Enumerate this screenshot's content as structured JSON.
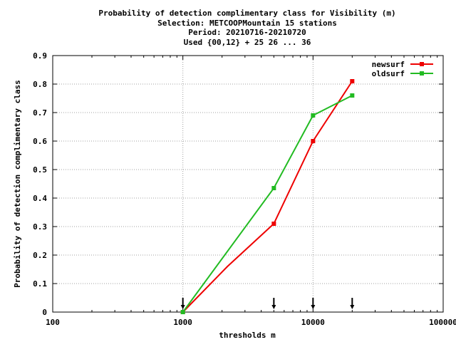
{
  "chart_data": {
    "type": "line",
    "title_lines": [
      "Probability of detection complimentary class  for Visibility (m)",
      "Selection: METCOOPMountain     15 stations",
      "Period: 20210716-20210720",
      "Used {00,12} + 25 26 ... 36"
    ],
    "xlabel": "thresholds m",
    "ylabel": "Probability of detection complimentary class",
    "x_scale": "log",
    "xlim": [
      100,
      100000
    ],
    "ylim": [
      0,
      0.9
    ],
    "x_ticks": [
      100,
      1000,
      10000,
      100000
    ],
    "x_tick_labels": [
      "100",
      "1000",
      "10000",
      "100000"
    ],
    "y_ticks": [
      0,
      0.1,
      0.2,
      0.3,
      0.4,
      0.5,
      0.6,
      0.7,
      0.8,
      0.9
    ],
    "y_tick_labels": [
      "0",
      "0.1",
      "0.2",
      "0.3",
      "0.4",
      "0.5",
      "0.6",
      "0.7",
      "0.8",
      "0.9"
    ],
    "grid": true,
    "legend_position": "top-right",
    "series": [
      {
        "name": "newsurf",
        "color": "#ee0000",
        "x": [
          1000,
          2200,
          5000,
          10000,
          20000
        ],
        "y": [
          0.0,
          0.16,
          0.31,
          0.6,
          0.81
        ],
        "markers": [
          true,
          false,
          true,
          true,
          true
        ]
      },
      {
        "name": "oldsurf",
        "color": "#22bb22",
        "x": [
          1000,
          5000,
          10000,
          20000
        ],
        "y": [
          0.0,
          0.435,
          0.69,
          0.76
        ],
        "markers": [
          true,
          true,
          true,
          true
        ]
      }
    ],
    "threshold_arrows": [
      1000,
      5000,
      10000,
      20000
    ]
  }
}
